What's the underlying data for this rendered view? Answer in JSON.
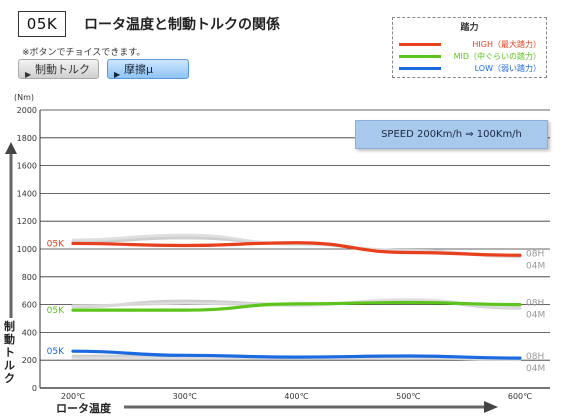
{
  "header": {
    "badge": "05K",
    "title": "ロータ温度と制動トルクの関係",
    "note": "※ボタンでチョイスできます。",
    "buttons": [
      {
        "label": "制動トルク",
        "active": false
      },
      {
        "label": "摩擦μ",
        "active": true
      }
    ]
  },
  "legend": {
    "title": "踏力",
    "entries": [
      {
        "label": "HIGH（最大踏力）",
        "color": "#e8401c"
      },
      {
        "label": "MID（中ぐらいの踏力）",
        "color": "#5cc41c"
      },
      {
        "label": "LOW（弱い踏力）",
        "color": "#1c6ae0"
      }
    ]
  },
  "annotation": "SPEED 200Km/h ⇒ 100Km/h",
  "chart_data": {
    "type": "line",
    "ylabel": "制動トルク",
    "yunit": "(Nm)",
    "xlabel": "ロータ温度",
    "ylim": [
      0,
      2000
    ],
    "yticks": [
      0,
      200,
      400,
      600,
      800,
      1000,
      1200,
      1400,
      1600,
      1800,
      2000
    ],
    "x": [
      "200℃",
      "300℃",
      "400℃",
      "500℃",
      "600℃"
    ],
    "series": [
      {
        "name": "05K",
        "group": "HIGH",
        "color": "#e8401c",
        "values": [
          1040,
          1025,
          1045,
          975,
          955
        ]
      },
      {
        "name": "08H",
        "group": "HIGH",
        "color": "#c8c8c8",
        "values": [
          1050,
          1080,
          1040,
          985,
          950
        ]
      },
      {
        "name": "04M",
        "group": "HIGH",
        "color": "#dcdcdc",
        "values": [
          1065,
          1100,
          1035,
          990,
          945
        ]
      },
      {
        "name": "05K",
        "group": "MID",
        "color": "#5cc41c",
        "values": [
          560,
          560,
          605,
          615,
          600
        ]
      },
      {
        "name": "08H",
        "group": "MID",
        "color": "#c8c8c8",
        "values": [
          585,
          625,
          600,
          625,
          575
        ]
      },
      {
        "name": "04M",
        "group": "MID",
        "color": "#dcdcdc",
        "values": [
          590,
          610,
          595,
          635,
          580
        ]
      },
      {
        "name": "05K",
        "group": "LOW",
        "color": "#1c6ae0",
        "values": [
          265,
          235,
          222,
          230,
          215
        ]
      },
      {
        "name": "08H",
        "group": "LOW",
        "color": "#c8c8c8",
        "values": [
          228,
          230,
          222,
          225,
          210
        ]
      },
      {
        "name": "04M",
        "group": "LOW",
        "color": "#dcdcdc",
        "values": [
          215,
          218,
          215,
          218,
          205
        ]
      }
    ]
  }
}
